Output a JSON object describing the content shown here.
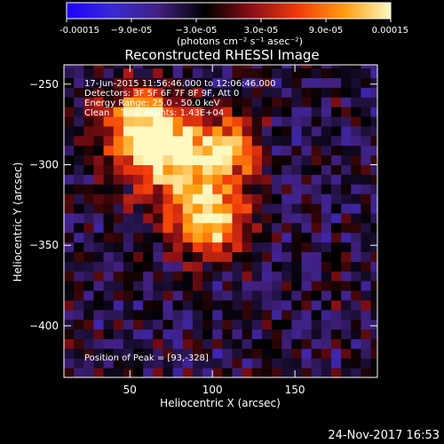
{
  "chart_data": {
    "type": "heatmap",
    "title": "Reconstructed RHESSI Image",
    "xlabel": "Heliocentric X (arcsec)",
    "ylabel": "Heliocentric Y (arcsec)",
    "xlim": [
      10,
      200
    ],
    "ylim": [
      -432,
      -238
    ],
    "x_ticks": [
      50,
      100,
      150
    ],
    "y_ticks": [
      -250,
      -300,
      -350,
      -400
    ],
    "colorbar": {
      "range": [
        -0.00015,
        0.00015
      ],
      "tick_values": [
        -0.00015,
        -9e-05,
        -3e-05,
        3e-05,
        9e-05,
        0.00015
      ],
      "tick_labels": [
        "-0.00015",
        "−9.0e-05",
        "−3.0e-05",
        "3.0e-05",
        "9.0e-05",
        "0.00015"
      ],
      "unit_line": "(photons cm⁻² s⁻¹ asec⁻²)",
      "colormap": [
        "#1c00ff",
        "#3a2ad2",
        "#40207d",
        "#000000",
        "#8a0f16",
        "#f23a0c",
        "#ff9d0e",
        "#fff8c0"
      ]
    },
    "annotations": [
      "17-Jun-2015 11:56:46.000 to 12:06:46.000",
      "Detectors: 3F 5F 6F 7F 8F 9F, Att 0",
      "Energy Range: 25.0 - 50.0 keV",
      "Clean    Total counts: 1.43E+04"
    ],
    "peak_label": "Position of Peak = [93,-328]",
    "peak_position": [
      93,
      -328
    ],
    "sources": [
      {
        "x": 78,
        "y": -295,
        "amp": 1.0,
        "sx": 22,
        "sy": 18
      },
      {
        "x": 97,
        "y": -335,
        "amp": 0.95,
        "sx": 16,
        "sy": 15
      },
      {
        "x": 55,
        "y": -272,
        "amp": 0.7,
        "sx": 18,
        "sy": 16
      },
      {
        "x": 112,
        "y": -290,
        "amp": 0.55,
        "sx": 12,
        "sy": 14
      }
    ],
    "background_level": -0.25
  },
  "footer": {
    "date": "24-Nov-2017 16:53"
  }
}
